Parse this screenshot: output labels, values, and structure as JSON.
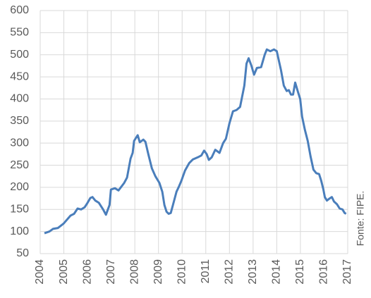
{
  "chart_data": {
    "type": "line",
    "annotations": [
      "Fonte: FIPE."
    ],
    "series": [
      {
        "color": "#4a7ebb",
        "x": [
          2004.18,
          2004.39,
          2004.54,
          2004.75,
          2004.99,
          2005.28,
          2005.43,
          2005.58,
          2005.73,
          2005.88,
          2006.0,
          2006.12,
          2006.21,
          2006.33,
          2006.48,
          2006.66,
          2006.78,
          2006.93,
          2006.99,
          2007.16,
          2007.31,
          2007.55,
          2007.67,
          2007.82,
          2007.91,
          2007.97,
          2008.12,
          2008.21,
          2008.36,
          2008.45,
          2008.57,
          2008.72,
          2008.87,
          2009.04,
          2009.16,
          2009.25,
          2009.34,
          2009.43,
          2009.52,
          2009.61,
          2009.76,
          2009.85,
          2009.97,
          2010.12,
          2010.3,
          2010.45,
          2010.66,
          2010.81,
          2010.93,
          2011.04,
          2011.13,
          2011.25,
          2011.4,
          2011.58,
          2011.73,
          2011.85,
          2012.0,
          2012.15,
          2012.3,
          2012.45,
          2012.63,
          2012.72,
          2012.81,
          2012.93,
          2013.04,
          2013.16,
          2013.34,
          2013.49,
          2013.58,
          2013.73,
          2013.88,
          2014.0,
          2014.18,
          2014.3,
          2014.42,
          2014.51,
          2014.6,
          2014.69,
          2014.78,
          2014.9,
          2014.99,
          2015.07,
          2015.19,
          2015.31,
          2015.43,
          2015.55,
          2015.67,
          2015.79,
          2015.88,
          2015.97,
          2016.03,
          2016.12,
          2016.24,
          2016.33,
          2016.42,
          2016.54,
          2016.66,
          2016.78,
          2016.87,
          2016.93
        ],
        "values": [
          96,
          100,
          106,
          108,
          118,
          136,
          140,
          152,
          150,
          155,
          165,
          176,
          178,
          170,
          165,
          150,
          138,
          160,
          195,
          198,
          193,
          210,
          222,
          265,
          278,
          305,
          318,
          302,
          308,
          303,
          275,
          243,
          225,
          210,
          190,
          160,
          145,
          140,
          142,
          160,
          190,
          200,
          215,
          238,
          255,
          263,
          268,
          272,
          283,
          275,
          262,
          268,
          285,
          278,
          300,
          310,
          345,
          372,
          375,
          382,
          430,
          480,
          492,
          475,
          455,
          470,
          472,
          500,
          512,
          508,
          512,
          508,
          465,
          430,
          418,
          420,
          410,
          410,
          437,
          415,
          400,
          360,
          330,
          305,
          270,
          240,
          232,
          230,
          215,
          195,
          178,
          170,
          175,
          178,
          168,
          162,
          152,
          150,
          142,
          140
        ]
      }
    ],
    "xlim": [
      2004,
      2017
    ],
    "xticks": [
      2004,
      2005,
      2006,
      2007,
      2008,
      2009,
      2010,
      2011,
      2012,
      2013,
      2014,
      2015,
      2016,
      2017
    ],
    "ylim": [
      50,
      600
    ],
    "yticks": [
      50,
      100,
      150,
      200,
      250,
      300,
      350,
      400,
      450,
      500,
      550,
      600
    ],
    "grid": true
  }
}
